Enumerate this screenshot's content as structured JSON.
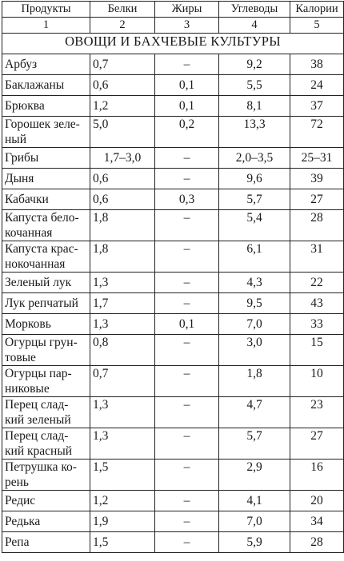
{
  "headers": [
    "Продукты",
    "Белки",
    "Жиры",
    "Углеводы",
    "Калории"
  ],
  "col_numbers": [
    "1",
    "2",
    "3",
    "4",
    "5"
  ],
  "section_title": "ОВОЩИ И БАХЧЕВЫЕ КУЛЬТУРЫ",
  "rows": [
    {
      "name": [
        "Арбуз"
      ],
      "protein": "0,7",
      "fat": "–",
      "carbs": "9,2",
      "kcal": "38"
    },
    {
      "name": [
        "Баклажаны"
      ],
      "protein": "0,6",
      "fat": "0,1",
      "carbs": "5,5",
      "kcal": "24"
    },
    {
      "name": [
        "Брюква"
      ],
      "protein": "1,2",
      "fat": "0,1",
      "carbs": "8,1",
      "kcal": "37"
    },
    {
      "name": [
        "Горошек зеле-",
        "ный"
      ],
      "protein": "5,0",
      "fat": "0,2",
      "carbs": "13,3",
      "kcal": "72"
    },
    {
      "name": [
        "Грибы"
      ],
      "protein": "1,7–3,0",
      "fat": "–",
      "carbs": "2,0–3,5",
      "kcal": "25–31"
    },
    {
      "name": [
        "Дыня"
      ],
      "protein": "0,6",
      "fat": "–",
      "carbs": "9,6",
      "kcal": "39"
    },
    {
      "name": [
        "Кабачки"
      ],
      "protein": "0,6",
      "fat": "0,3",
      "carbs": "5,7",
      "kcal": "27"
    },
    {
      "name": [
        "Капуста бело-",
        "кочанная"
      ],
      "protein": "1,8",
      "fat": "–",
      "carbs": "5,4",
      "kcal": "28"
    },
    {
      "name": [
        "Капуста крас-",
        "нокочанная"
      ],
      "protein": "1,8",
      "fat": "–",
      "carbs": "6,1",
      "kcal": "31"
    },
    {
      "name": [
        "Зеленый лук"
      ],
      "protein": "1,3",
      "fat": "–",
      "carbs": "4,3",
      "kcal": "22"
    },
    {
      "name": [
        "Лук репчатый"
      ],
      "protein": "1,7",
      "fat": "–",
      "carbs": "9,5",
      "kcal": "43"
    },
    {
      "name": [
        "Морковь"
      ],
      "protein": "1,3",
      "fat": "0,1",
      "carbs": "7,0",
      "kcal": "33"
    },
    {
      "name": [
        "Огурцы грун-",
        "товые"
      ],
      "protein": "0,8",
      "fat": "–",
      "carbs": "3,0",
      "kcal": "15"
    },
    {
      "name": [
        "Огурцы пар-",
        "никовые"
      ],
      "protein": "0,7",
      "fat": "–",
      "carbs": "1,8",
      "kcal": "10"
    },
    {
      "name": [
        "Перец слад-",
        "кий зеленый"
      ],
      "protein": "1,3",
      "fat": "–",
      "carbs": "4,7",
      "kcal": "23"
    },
    {
      "name": [
        "Перец слад-",
        "кий красный"
      ],
      "protein": "1,3",
      "fat": "–",
      "carbs": "5,7",
      "kcal": "27"
    },
    {
      "name": [
        "Петрушка ко-",
        "рень"
      ],
      "protein": "1,5",
      "fat": "–",
      "carbs": "2,9",
      "kcal": "16"
    },
    {
      "name": [
        "Редис"
      ],
      "protein": "1,2",
      "fat": "–",
      "carbs": "4,1",
      "kcal": "20"
    },
    {
      "name": [
        "Редька"
      ],
      "protein": "1,9",
      "fat": "–",
      "carbs": "7,0",
      "kcal": "34"
    },
    {
      "name": [
        "Репа"
      ],
      "protein": "1,5",
      "fat": "–",
      "carbs": "5,9",
      "kcal": "28"
    }
  ]
}
